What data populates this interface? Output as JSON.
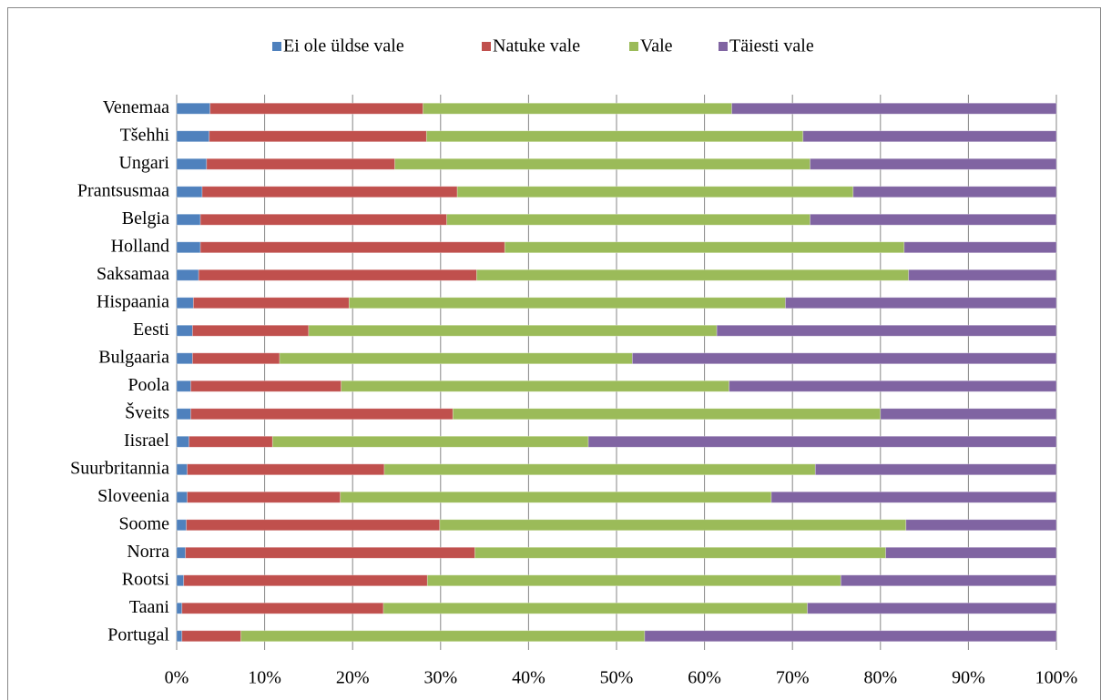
{
  "chart_data": {
    "type": "stacked-barh",
    "categories": [
      "Venemaa",
      "Tšehhi",
      "Ungari",
      "Prantsusmaa",
      "Belgia",
      "Holland",
      "Saksamaa",
      "Hispaania",
      "Eesti",
      "Bulgaaria",
      "Poola",
      "Šveits",
      "Iisrael",
      "Suurbritannia",
      "Sloveenia",
      "Soome",
      "Norra",
      "Rootsi",
      "Taani",
      "Portugal"
    ],
    "series": [
      {
        "name": "Ei ole üldse vale",
        "color": "#4f81bd",
        "values": [
          3.8,
          3.7,
          3.4,
          2.9,
          2.7,
          2.7,
          2.5,
          1.9,
          1.8,
          1.8,
          1.6,
          1.6,
          1.4,
          1.2,
          1.2,
          1.1,
          1.0,
          0.8,
          0.6,
          0.6
        ]
      },
      {
        "name": "Natuke vale",
        "color": "#c0504d",
        "values": [
          24.2,
          24.7,
          21.4,
          29.0,
          28.0,
          34.6,
          31.6,
          17.7,
          13.2,
          9.9,
          17.1,
          29.8,
          9.5,
          22.4,
          17.4,
          28.8,
          32.9,
          27.7,
          22.9,
          6.7
        ]
      },
      {
        "name": "Vale",
        "color": "#9bbb59",
        "values": [
          35.1,
          42.8,
          47.2,
          45.0,
          41.3,
          45.4,
          49.1,
          49.6,
          46.4,
          40.1,
          44.1,
          48.6,
          35.9,
          49.0,
          49.0,
          53.0,
          46.7,
          47.0,
          48.2,
          45.9
        ]
      },
      {
        "name": "Täiesti vale",
        "color": "#8064a2",
        "values": [
          36.9,
          28.8,
          28.0,
          23.1,
          28.0,
          17.3,
          16.8,
          30.8,
          38.6,
          48.2,
          37.2,
          20.0,
          53.2,
          27.4,
          32.4,
          17.1,
          19.4,
          24.5,
          28.3,
          46.8
        ]
      }
    ],
    "xlim": [
      0,
      100
    ],
    "xticks": [
      {
        "value": 0,
        "label": "0%"
      },
      {
        "value": 10,
        "label": "10%"
      },
      {
        "value": 20,
        "label": "20%"
      },
      {
        "value": 30,
        "label": "30%"
      },
      {
        "value": 40,
        "label": "40%"
      },
      {
        "value": 50,
        "label": "50%"
      },
      {
        "value": 60,
        "label": "60%"
      },
      {
        "value": 70,
        "label": "70%"
      },
      {
        "value": 80,
        "label": "80%"
      },
      {
        "value": 90,
        "label": "90%"
      },
      {
        "value": 100,
        "label": "100%"
      }
    ],
    "grid": true,
    "legend": "top"
  }
}
